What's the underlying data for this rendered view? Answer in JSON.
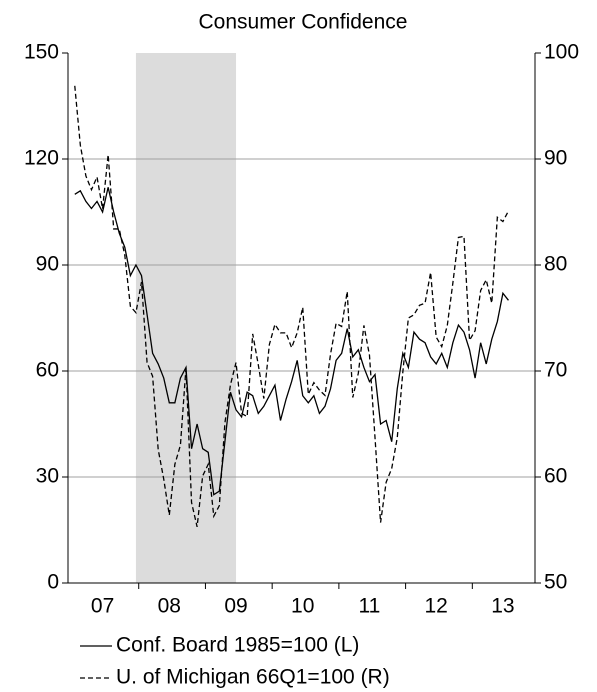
{
  "chart_data": {
    "type": "line",
    "title": "Consumer Confidence",
    "categories": [
      null,
      null,
      null,
      null,
      null,
      "07",
      null,
      null,
      null,
      null,
      null,
      null,
      null,
      null,
      null,
      null,
      null,
      "08",
      null,
      null,
      null,
      null,
      null,
      null,
      null,
      null,
      null,
      null,
      null,
      "09",
      null,
      null,
      null,
      null,
      null,
      null,
      null,
      null,
      null,
      null,
      null,
      "10",
      null,
      null,
      null,
      null,
      null,
      null,
      null,
      null,
      null,
      null,
      null,
      "11",
      null,
      null,
      null,
      null,
      null,
      null,
      null,
      null,
      null,
      null,
      null,
      "12",
      null,
      null,
      null,
      null,
      null,
      null,
      null,
      null,
      null,
      null,
      null,
      "13",
      null
    ],
    "shaded_span": [
      11,
      29
    ],
    "series": [
      {
        "name": "Conf. Board 1985=100 (L)",
        "color": "#000000",
        "style": "solid",
        "axis": "y",
        "values": [
          110,
          111,
          108,
          106,
          108,
          105,
          112,
          105,
          99,
          95,
          87,
          90,
          87,
          76,
          65,
          62,
          58,
          51,
          51,
          58,
          61,
          38,
          45,
          38,
          37,
          25,
          26,
          40,
          54,
          49,
          47,
          54,
          53,
          48,
          50,
          53,
          56,
          46,
          52,
          57,
          63,
          53,
          51,
          53,
          48,
          50,
          55,
          63,
          65,
          72,
          64,
          66,
          61,
          57,
          59,
          45,
          46,
          40,
          55,
          65,
          61,
          71,
          69,
          68,
          64,
          62,
          65,
          61,
          68,
          73,
          71,
          66,
          58,
          68,
          62,
          69,
          74,
          82,
          80
        ]
      },
      {
        "name": "U. of Michigan 66Q1=100 (R)",
        "color": "#000000",
        "style": "dashed",
        "axis": "y2",
        "values": [
          96.9,
          91.3,
          88.4,
          87.1,
          88.3,
          85.3,
          90.4,
          83.4,
          83.4,
          80.9,
          76.1,
          75.5,
          78.4,
          70.8,
          69.5,
          62.6,
          59.8,
          56.4,
          61.2,
          63.0,
          70.3,
          57.6,
          55.3,
          60.1,
          61.2,
          56.3,
          57.3,
          65.1,
          68.7,
          70.8,
          66.0,
          65.7,
          73.5,
          70.6,
          67.4,
          72.5,
          74.4,
          73.6,
          73.6,
          72.2,
          73.6,
          76.0,
          67.8,
          68.9,
          68.2,
          67.7,
          71.6,
          74.5,
          74.2,
          77.5,
          67.5,
          69.8,
          74.3,
          71.5,
          63.7,
          55.7,
          59.5,
          60.8,
          63.7,
          69.9,
          75.0,
          75.3,
          76.2,
          76.4,
          79.3,
          73.2,
          72.3,
          74.3,
          78.3,
          82.6,
          82.7,
          72.9,
          73.8,
          77.6,
          78.6,
          76.4,
          84.5,
          84.1,
          85.1
        ]
      }
    ],
    "ylim": [
      0,
      150
    ],
    "yticks": [
      0,
      30,
      60,
      90,
      120,
      150
    ],
    "y2lim": [
      50,
      100
    ],
    "y2ticks": [
      50,
      60,
      70,
      80,
      90,
      100
    ],
    "grid": true
  }
}
